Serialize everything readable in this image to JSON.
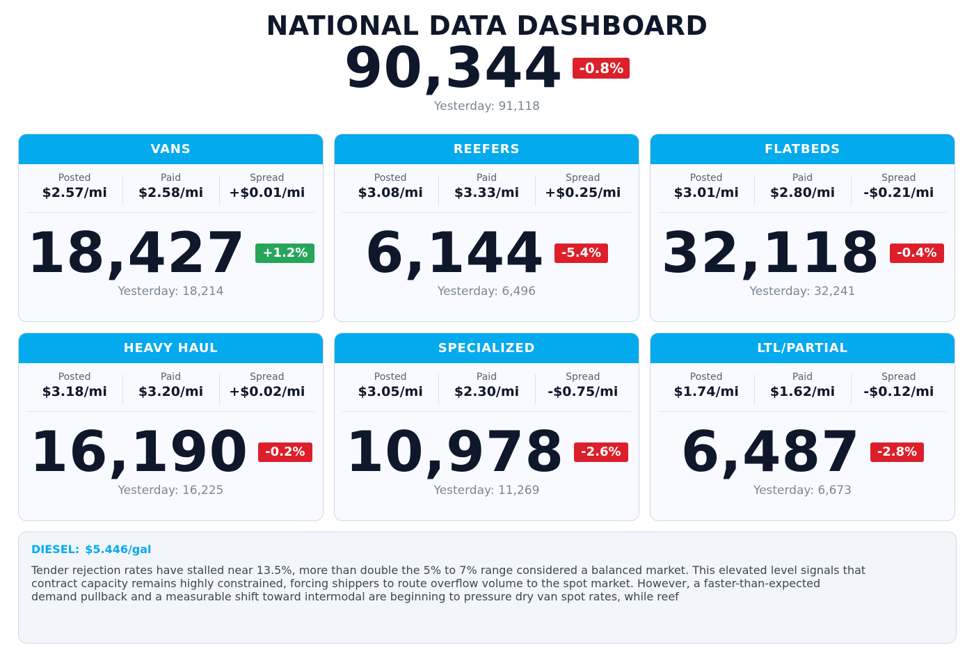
{
  "header": {
    "title": "NATIONAL DATA DASHBOARD",
    "total": "90,344",
    "total_change": "-0.8%",
    "yesterday": "Yesterday: 91,118"
  },
  "labels": {
    "posted": "Posted",
    "paid": "Paid",
    "spread": "Spread"
  },
  "cards": [
    {
      "title": "VANS",
      "posted": "$2.57/mi",
      "paid": "$2.58/mi",
      "spread": "+$0.01/mi",
      "count": "18,427",
      "change": "+1.2%",
      "yesterday": "Yesterday: 18,214"
    },
    {
      "title": "REEFERS",
      "posted": "$3.08/mi",
      "paid": "$3.33/mi",
      "spread": "+$0.25/mi",
      "count": "6,144",
      "change": "-5.4%",
      "yesterday": "Yesterday: 6,496"
    },
    {
      "title": "FLATBEDS",
      "posted": "$3.01/mi",
      "paid": "$2.80/mi",
      "spread": "-$0.21/mi",
      "count": "32,118",
      "change": "-0.4%",
      "yesterday": "Yesterday: 32,241"
    },
    {
      "title": "HEAVY HAUL",
      "posted": "$3.18/mi",
      "paid": "$3.20/mi",
      "spread": "+$0.02/mi",
      "count": "16,190",
      "change": "-0.2%",
      "yesterday": "Yesterday: 16,225"
    },
    {
      "title": "SPECIALIZED",
      "posted": "$3.05/mi",
      "paid": "$2.30/mi",
      "spread": "-$0.75/mi",
      "count": "10,978",
      "change": "-2.6%",
      "yesterday": "Yesterday: 11,269"
    },
    {
      "title": "LTL/PARTIAL",
      "posted": "$1.74/mi",
      "paid": "$1.62/mi",
      "spread": "-$0.12/mi",
      "count": "6,487",
      "change": "-2.8%",
      "yesterday": "Yesterday: 6,673"
    }
  ],
  "diesel": {
    "label": "DIESEL:",
    "price": "$5.446/gal",
    "commentary": "Tender rejection rates have stalled near 13.5%, more than double the 5% to 7% range considered a balanced market. This elevated level signals that contract capacity remains highly constrained, forcing shippers to route overflow volume to the spot market. However, a faster-than-expected demand pullback and a measurable shift toward intermodal are beginning to pressure dry van spot rates, while reef"
  },
  "colors": {
    "accent": "#03aaee",
    "negative": "#dc1f2a",
    "positive": "#27a55a",
    "text": "#0f172a",
    "muted": "#7b8594"
  }
}
